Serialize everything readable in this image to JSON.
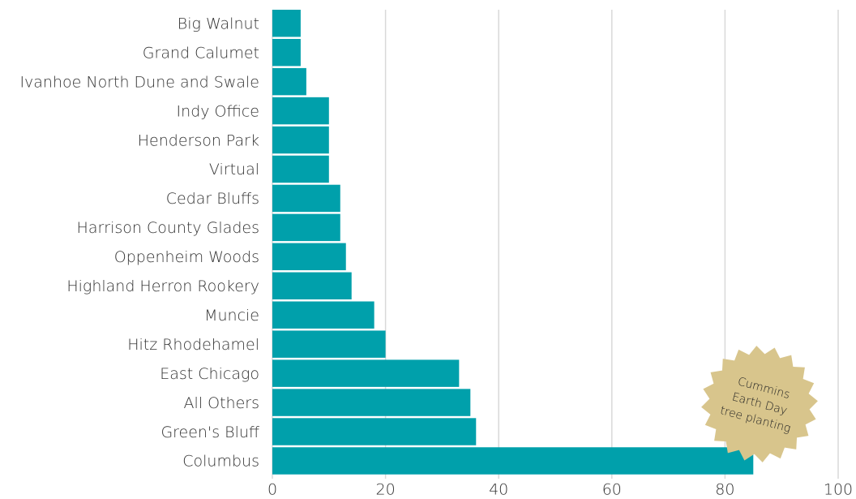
{
  "chart_data": {
    "type": "bar",
    "orientation": "horizontal",
    "categories": [
      "Big Walnut",
      "Grand Calumet",
      "Ivanhoe North Dune and Swale",
      "Indy Office",
      "Henderson Park",
      "Virtual",
      "Cedar Bluffs",
      "Harrison County Glades",
      "Oppenheim Woods",
      "Highland Herron Rookery",
      "Muncie",
      "Hitz Rhodehamel",
      "East Chicago",
      "All Others",
      "Green's Bluff",
      "Columbus"
    ],
    "values": [
      5,
      5,
      6,
      10,
      10,
      10,
      12,
      12,
      13,
      14,
      18,
      20,
      33,
      35,
      36,
      85
    ],
    "color": "#00a0ab",
    "xlim": [
      0,
      100
    ],
    "xticks": [
      0,
      20,
      40,
      60,
      80,
      100
    ],
    "grid": true,
    "annotation": [
      "Cummins",
      "Earth Day",
      "tree planting"
    ]
  }
}
